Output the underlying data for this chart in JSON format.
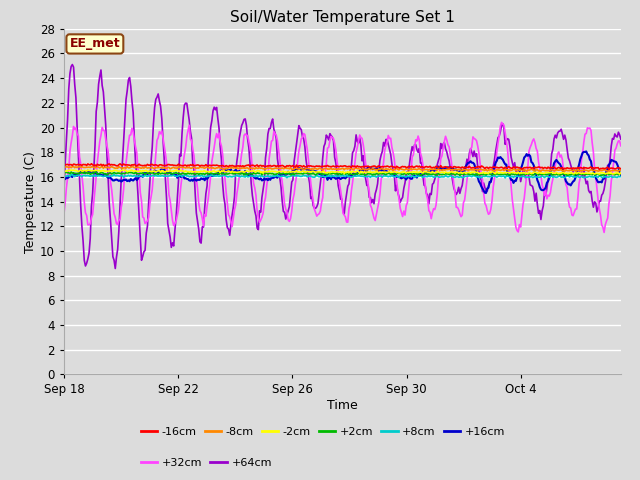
{
  "title": "Soil/Water Temperature Set 1",
  "xlabel": "Time",
  "ylabel": "Temperature (C)",
  "ylim": [
    0,
    28
  ],
  "yticks": [
    0,
    2,
    4,
    6,
    8,
    10,
    12,
    14,
    16,
    18,
    20,
    22,
    24,
    26,
    28
  ],
  "xlim_days": [
    0,
    19.5
  ],
  "x_tick_labels": [
    "Sep 18",
    "Sep 22",
    "Sep 26",
    "Sep 30",
    "Oct 4"
  ],
  "x_tick_positions": [
    0,
    4,
    8,
    12,
    16
  ],
  "bg_color": "#dcdcdc",
  "grid_color": "#ffffff",
  "annotation_text": "EE_met",
  "annotation_bg": "#ffffcc",
  "annotation_border": "#8b4513",
  "annotation_text_color": "#8b0000",
  "series_colors": {
    "-16cm": "#ff0000",
    "-8cm": "#ff8800",
    "-2cm": "#ffff00",
    "+2cm": "#00bb00",
    "+8cm": "#00cccc",
    "+16cm": "#0000cc",
    "+32cm": "#ff44ff",
    "+64cm": "#9900cc"
  },
  "title_fontsize": 11,
  "axis_label_fontsize": 9,
  "tick_fontsize": 8.5,
  "legend_fontsize": 8
}
